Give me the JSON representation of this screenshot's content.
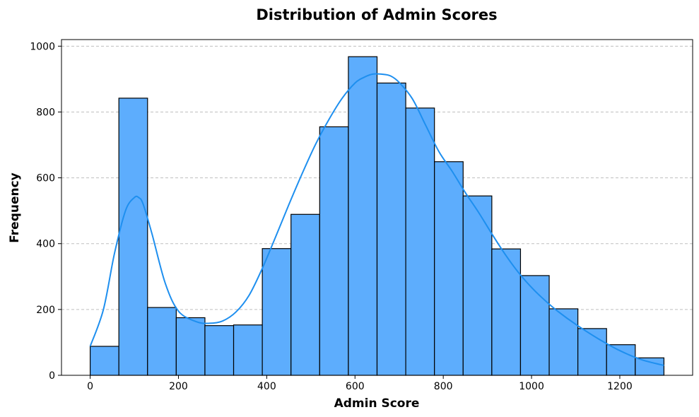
{
  "chart_data": {
    "type": "bar",
    "title": "Distribution of Admin Scores",
    "xlabel": "Admin Score",
    "ylabel": "Frequency",
    "xlim": [
      -65,
      1365
    ],
    "ylim": [
      0,
      1020
    ],
    "xticks": [
      0,
      200,
      400,
      600,
      800,
      1000,
      1200
    ],
    "yticks": [
      0,
      200,
      400,
      600,
      800,
      1000
    ],
    "grid": "y-dashed",
    "colors": {
      "bar": "#5DADFD",
      "edge": "#000000",
      "kde": "#1E8FEF",
      "grid": "#bfbfbf"
    },
    "bins": [
      {
        "start": 0,
        "end": 65,
        "count": 88
      },
      {
        "start": 65,
        "end": 130,
        "count": 842
      },
      {
        "start": 130,
        "end": 195,
        "count": 206
      },
      {
        "start": 195,
        "end": 260,
        "count": 175
      },
      {
        "start": 260,
        "end": 325,
        "count": 151
      },
      {
        "start": 325,
        "end": 390,
        "count": 153
      },
      {
        "start": 390,
        "end": 455,
        "count": 385
      },
      {
        "start": 455,
        "end": 520,
        "count": 489
      },
      {
        "start": 520,
        "end": 585,
        "count": 755
      },
      {
        "start": 585,
        "end": 650,
        "count": 968
      },
      {
        "start": 650,
        "end": 715,
        "count": 888
      },
      {
        "start": 715,
        "end": 780,
        "count": 812
      },
      {
        "start": 780,
        "end": 845,
        "count": 649
      },
      {
        "start": 845,
        "end": 910,
        "count": 545
      },
      {
        "start": 910,
        "end": 975,
        "count": 384
      },
      {
        "start": 975,
        "end": 1040,
        "count": 303
      },
      {
        "start": 1040,
        "end": 1105,
        "count": 202
      },
      {
        "start": 1105,
        "end": 1170,
        "count": 142
      },
      {
        "start": 1170,
        "end": 1235,
        "count": 93
      },
      {
        "start": 1235,
        "end": 1300,
        "count": 53
      }
    ],
    "kde": {
      "x": [
        0,
        30,
        55,
        80,
        100,
        110,
        120,
        140,
        170,
        200,
        240,
        270,
        300,
        330,
        360,
        390,
        420,
        450,
        480,
        510,
        540,
        570,
        600,
        620,
        640,
        660,
        680,
        700,
        730,
        760,
        790,
        820,
        850,
        880,
        910,
        940,
        970,
        1000,
        1030,
        1060,
        1100,
        1150,
        1200,
        1250,
        1300
      ],
      "y": [
        88,
        200,
        370,
        500,
        540,
        540,
        520,
        430,
        280,
        195,
        163,
        158,
        165,
        192,
        243,
        325,
        420,
        518,
        612,
        700,
        775,
        840,
        888,
        905,
        915,
        915,
        910,
        890,
        840,
        760,
        680,
        620,
        555,
        495,
        430,
        368,
        313,
        267,
        228,
        194,
        155,
        112,
        75,
        47,
        30
      ]
    }
  }
}
